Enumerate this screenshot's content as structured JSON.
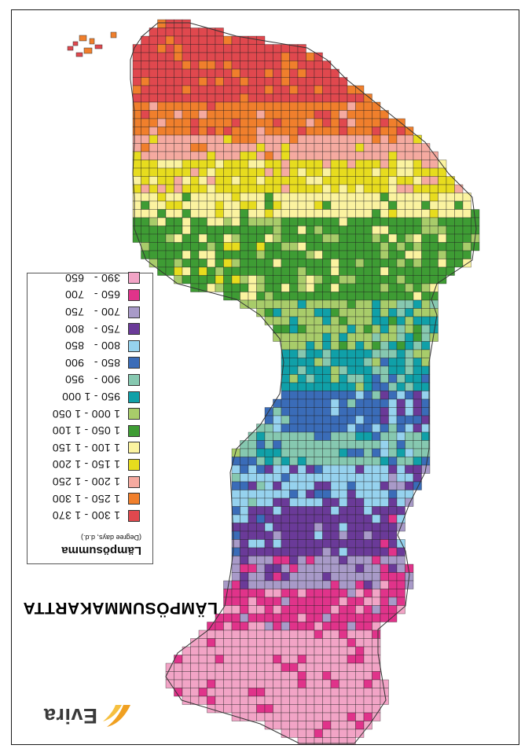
{
  "map": {
    "title": "LÄMPÖSUMMAKARTTA",
    "legend": {
      "title": "Lämpösumma",
      "subtitle": "(Degree days, d.d.)",
      "classes": [
        {
          "range": "1 300 - 1 370",
          "color": "#e0484e"
        },
        {
          "range": "1 250 - 1 300",
          "color": "#f07f2c"
        },
        {
          "range": "1 200 - 1 250",
          "color": "#f5aaa0"
        },
        {
          "range": "1 150 - 1 200",
          "color": "#e7dc1e"
        },
        {
          "range": "1 100 - 1 150",
          "color": "#fbf3a0"
        },
        {
          "range": "1 050 - 1 100",
          "color": "#3e9c34"
        },
        {
          "range": "1 000 - 1 050",
          "color": "#a8cc6a"
        },
        {
          "range": "950 - 1 000",
          "color": "#10a0a8"
        },
        {
          "range": "900 -   950",
          "color": "#86c8b0"
        },
        {
          "range": "850 -   900",
          "color": "#3a6cb8"
        },
        {
          "range": "800 -   850",
          "color": "#96d2ee"
        },
        {
          "range": "750 -   800",
          "color": "#6a3a98"
        },
        {
          "range": "700 -   750",
          "color": "#a89ac8"
        },
        {
          "range": "650 -   700",
          "color": "#e0338a"
        },
        {
          "range": "390 -   650",
          "color": "#f2a4c6"
        }
      ]
    },
    "logo": {
      "text": "Evira",
      "color": "#f0a020"
    },
    "grid_color": "#222222"
  }
}
